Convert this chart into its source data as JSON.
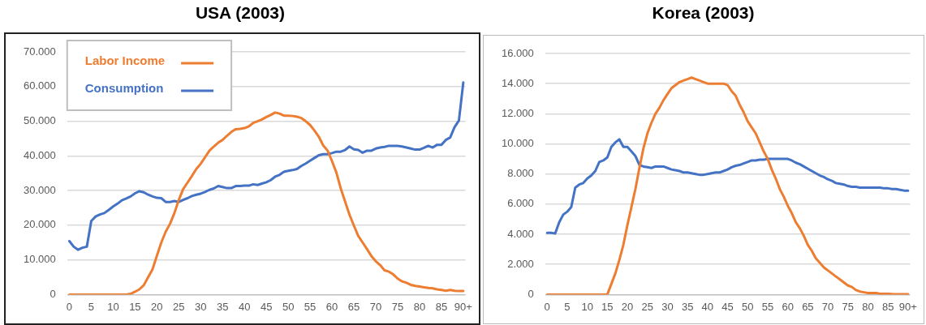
{
  "chart_data": [
    {
      "type": "line",
      "title": "USA (2003)",
      "categories": [
        "0",
        null,
        null,
        null,
        null,
        "5",
        null,
        null,
        null,
        null,
        "10",
        null,
        null,
        null,
        null,
        "15",
        null,
        null,
        null,
        null,
        "20",
        null,
        null,
        null,
        null,
        "25",
        null,
        null,
        null,
        null,
        "30",
        null,
        null,
        null,
        null,
        "35",
        null,
        null,
        null,
        null,
        "40",
        null,
        null,
        null,
        null,
        "45",
        null,
        null,
        null,
        null,
        "50",
        null,
        null,
        null,
        null,
        "55",
        null,
        null,
        null,
        null,
        "60",
        null,
        null,
        null,
        null,
        "65",
        null,
        null,
        null,
        null,
        "70",
        null,
        null,
        null,
        null,
        "75",
        null,
        null,
        null,
        null,
        "80",
        null,
        null,
        null,
        null,
        "85",
        null,
        null,
        null,
        null,
        "90+"
      ],
      "series": [
        {
          "name": "Labor Income",
          "color": "#ed7d31",
          "values": [
            0,
            0,
            0,
            0,
            0,
            0,
            0,
            0,
            0,
            0,
            0,
            0,
            0,
            0,
            200,
            800,
            1500,
            2700,
            5000,
            7300,
            11200,
            15000,
            18100,
            20400,
            23500,
            27300,
            30400,
            32300,
            34200,
            36200,
            37700,
            39600,
            41500,
            42700,
            43800,
            44600,
            45800,
            46900,
            47700,
            47800,
            48000,
            48500,
            49500,
            50000,
            50500,
            51200,
            51800,
            52500,
            52200,
            51600,
            51600,
            51500,
            51300,
            50900,
            50000,
            48900,
            47300,
            45500,
            43000,
            41500,
            38500,
            35200,
            30600,
            26800,
            23000,
            19900,
            16900,
            15000,
            13100,
            11100,
            9600,
            8500,
            7000,
            6600,
            5800,
            4600,
            3800,
            3400,
            2800,
            2500,
            2300,
            2100,
            1900,
            1800,
            1500,
            1300,
            1100,
            1300,
            1100,
            1000,
            1000
          ]
        },
        {
          "name": "Consumption",
          "color": "#4472c4",
          "values": [
            15400,
            13800,
            12900,
            13500,
            13800,
            21200,
            22500,
            23100,
            23500,
            24400,
            25400,
            26200,
            27200,
            27700,
            28300,
            29200,
            29800,
            29500,
            28800,
            28300,
            27900,
            27800,
            26700,
            26700,
            27000,
            26700,
            27300,
            27800,
            28400,
            28800,
            29100,
            29600,
            30200,
            30600,
            31300,
            31000,
            30700,
            30700,
            31300,
            31300,
            31400,
            31400,
            31800,
            31600,
            32000,
            32400,
            33000,
            34000,
            34500,
            35400,
            35700,
            35900,
            36200,
            37100,
            37800,
            38600,
            39400,
            40200,
            40500,
            40500,
            40800,
            41200,
            41200,
            41700,
            42700,
            41900,
            41700,
            40900,
            41500,
            41500,
            42100,
            42400,
            42600,
            42900,
            42900,
            42900,
            42700,
            42400,
            42100,
            41800,
            41800,
            42300,
            42900,
            42400,
            43200,
            43200,
            44600,
            45300,
            48300,
            50200,
            61200
          ]
        }
      ],
      "ylim": [
        0,
        70000
      ],
      "yticks": [
        0,
        {
          "value": 10000,
          "label": "10.000"
        },
        {
          "value": 20000,
          "label": "20.000"
        },
        {
          "value": 30000,
          "label": "30.000"
        },
        {
          "value": 40000,
          "label": "40.000"
        },
        {
          "value": 50000,
          "label": "50.000"
        },
        {
          "value": 60000,
          "label": "60.000"
        },
        {
          "value": 70000,
          "label": "70.000"
        }
      ],
      "grid": "y",
      "legend": "top left",
      "marker": "none"
    },
    {
      "type": "line",
      "title": "Korea (2003)",
      "categories": [
        "0",
        null,
        null,
        null,
        null,
        "5",
        null,
        null,
        null,
        null,
        "10",
        null,
        null,
        null,
        null,
        "15",
        null,
        null,
        null,
        null,
        "20",
        null,
        null,
        null,
        null,
        "25",
        null,
        null,
        null,
        null,
        "30",
        null,
        null,
        null,
        null,
        "35",
        null,
        null,
        null,
        null,
        "40",
        null,
        null,
        null,
        null,
        "45",
        null,
        null,
        null,
        null,
        "50",
        null,
        null,
        null,
        null,
        "55",
        null,
        null,
        null,
        null,
        "60",
        null,
        null,
        null,
        null,
        "65",
        null,
        null,
        null,
        null,
        "70",
        null,
        null,
        null,
        null,
        "75",
        null,
        null,
        null,
        null,
        "80",
        null,
        null,
        null,
        null,
        "85",
        null,
        null,
        null,
        null,
        "90+"
      ],
      "series": [
        {
          "color": "#ed7d31",
          "values": [
            0,
            0,
            0,
            0,
            0,
            0,
            0,
            0,
            0,
            0,
            0,
            0,
            0,
            0,
            0,
            0,
            700,
            1400,
            2300,
            3300,
            4600,
            5800,
            7000,
            8400,
            9700,
            10700,
            11400,
            12000,
            12400,
            12900,
            13300,
            13700,
            13900,
            14100,
            14200,
            14300,
            14400,
            14300,
            14200,
            14100,
            14000,
            14000,
            14000,
            14000,
            14000,
            13900,
            13500,
            13200,
            12600,
            12100,
            11500,
            11100,
            10700,
            10100,
            9500,
            9000,
            8300,
            7700,
            7000,
            6500,
            5900,
            5400,
            4800,
            4400,
            3900,
            3300,
            2900,
            2400,
            2100,
            1800,
            1600,
            1400,
            1200,
            1000,
            800,
            600,
            500,
            300,
            200,
            150,
            100,
            100,
            100,
            50,
            50,
            50,
            30,
            20,
            20,
            20,
            20
          ]
        },
        {
          "color": "#4472c4",
          "values": [
            4100,
            4100,
            4050,
            4800,
            5300,
            5500,
            5800,
            7100,
            7300,
            7400,
            7700,
            7900,
            8200,
            8800,
            8900,
            9100,
            9800,
            10100,
            10300,
            9800,
            9800,
            9500,
            9200,
            8600,
            8500,
            8450,
            8400,
            8500,
            8500,
            8500,
            8400,
            8300,
            8250,
            8200,
            8100,
            8100,
            8050,
            8000,
            7950,
            7950,
            8000,
            8050,
            8100,
            8100,
            8200,
            8300,
            8450,
            8550,
            8600,
            8700,
            8800,
            8900,
            8900,
            8950,
            8950,
            9000,
            9000,
            9000,
            9000,
            9000,
            9000,
            8900,
            8750,
            8650,
            8500,
            8350,
            8200,
            8050,
            7900,
            7800,
            7650,
            7550,
            7400,
            7350,
            7300,
            7200,
            7150,
            7150,
            7100,
            7100,
            7100,
            7100,
            7100,
            7100,
            7050,
            7050,
            7000,
            7000,
            6950,
            6900,
            6900
          ]
        }
      ],
      "ylim": [
        0,
        16000
      ],
      "yticks": [
        0,
        {
          "value": 2000,
          "label": "2.000"
        },
        {
          "value": 4000,
          "label": "4.000"
        },
        {
          "value": 6000,
          "label": "6.000"
        },
        {
          "value": 8000,
          "label": "8.000"
        },
        {
          "value": 10000,
          "label": "10.000"
        },
        {
          "value": 12000,
          "label": "12.000"
        },
        {
          "value": 14000,
          "label": "14.000"
        },
        {
          "value": 16000,
          "label": "16.000"
        }
      ],
      "grid": "y",
      "marker": "none"
    }
  ]
}
